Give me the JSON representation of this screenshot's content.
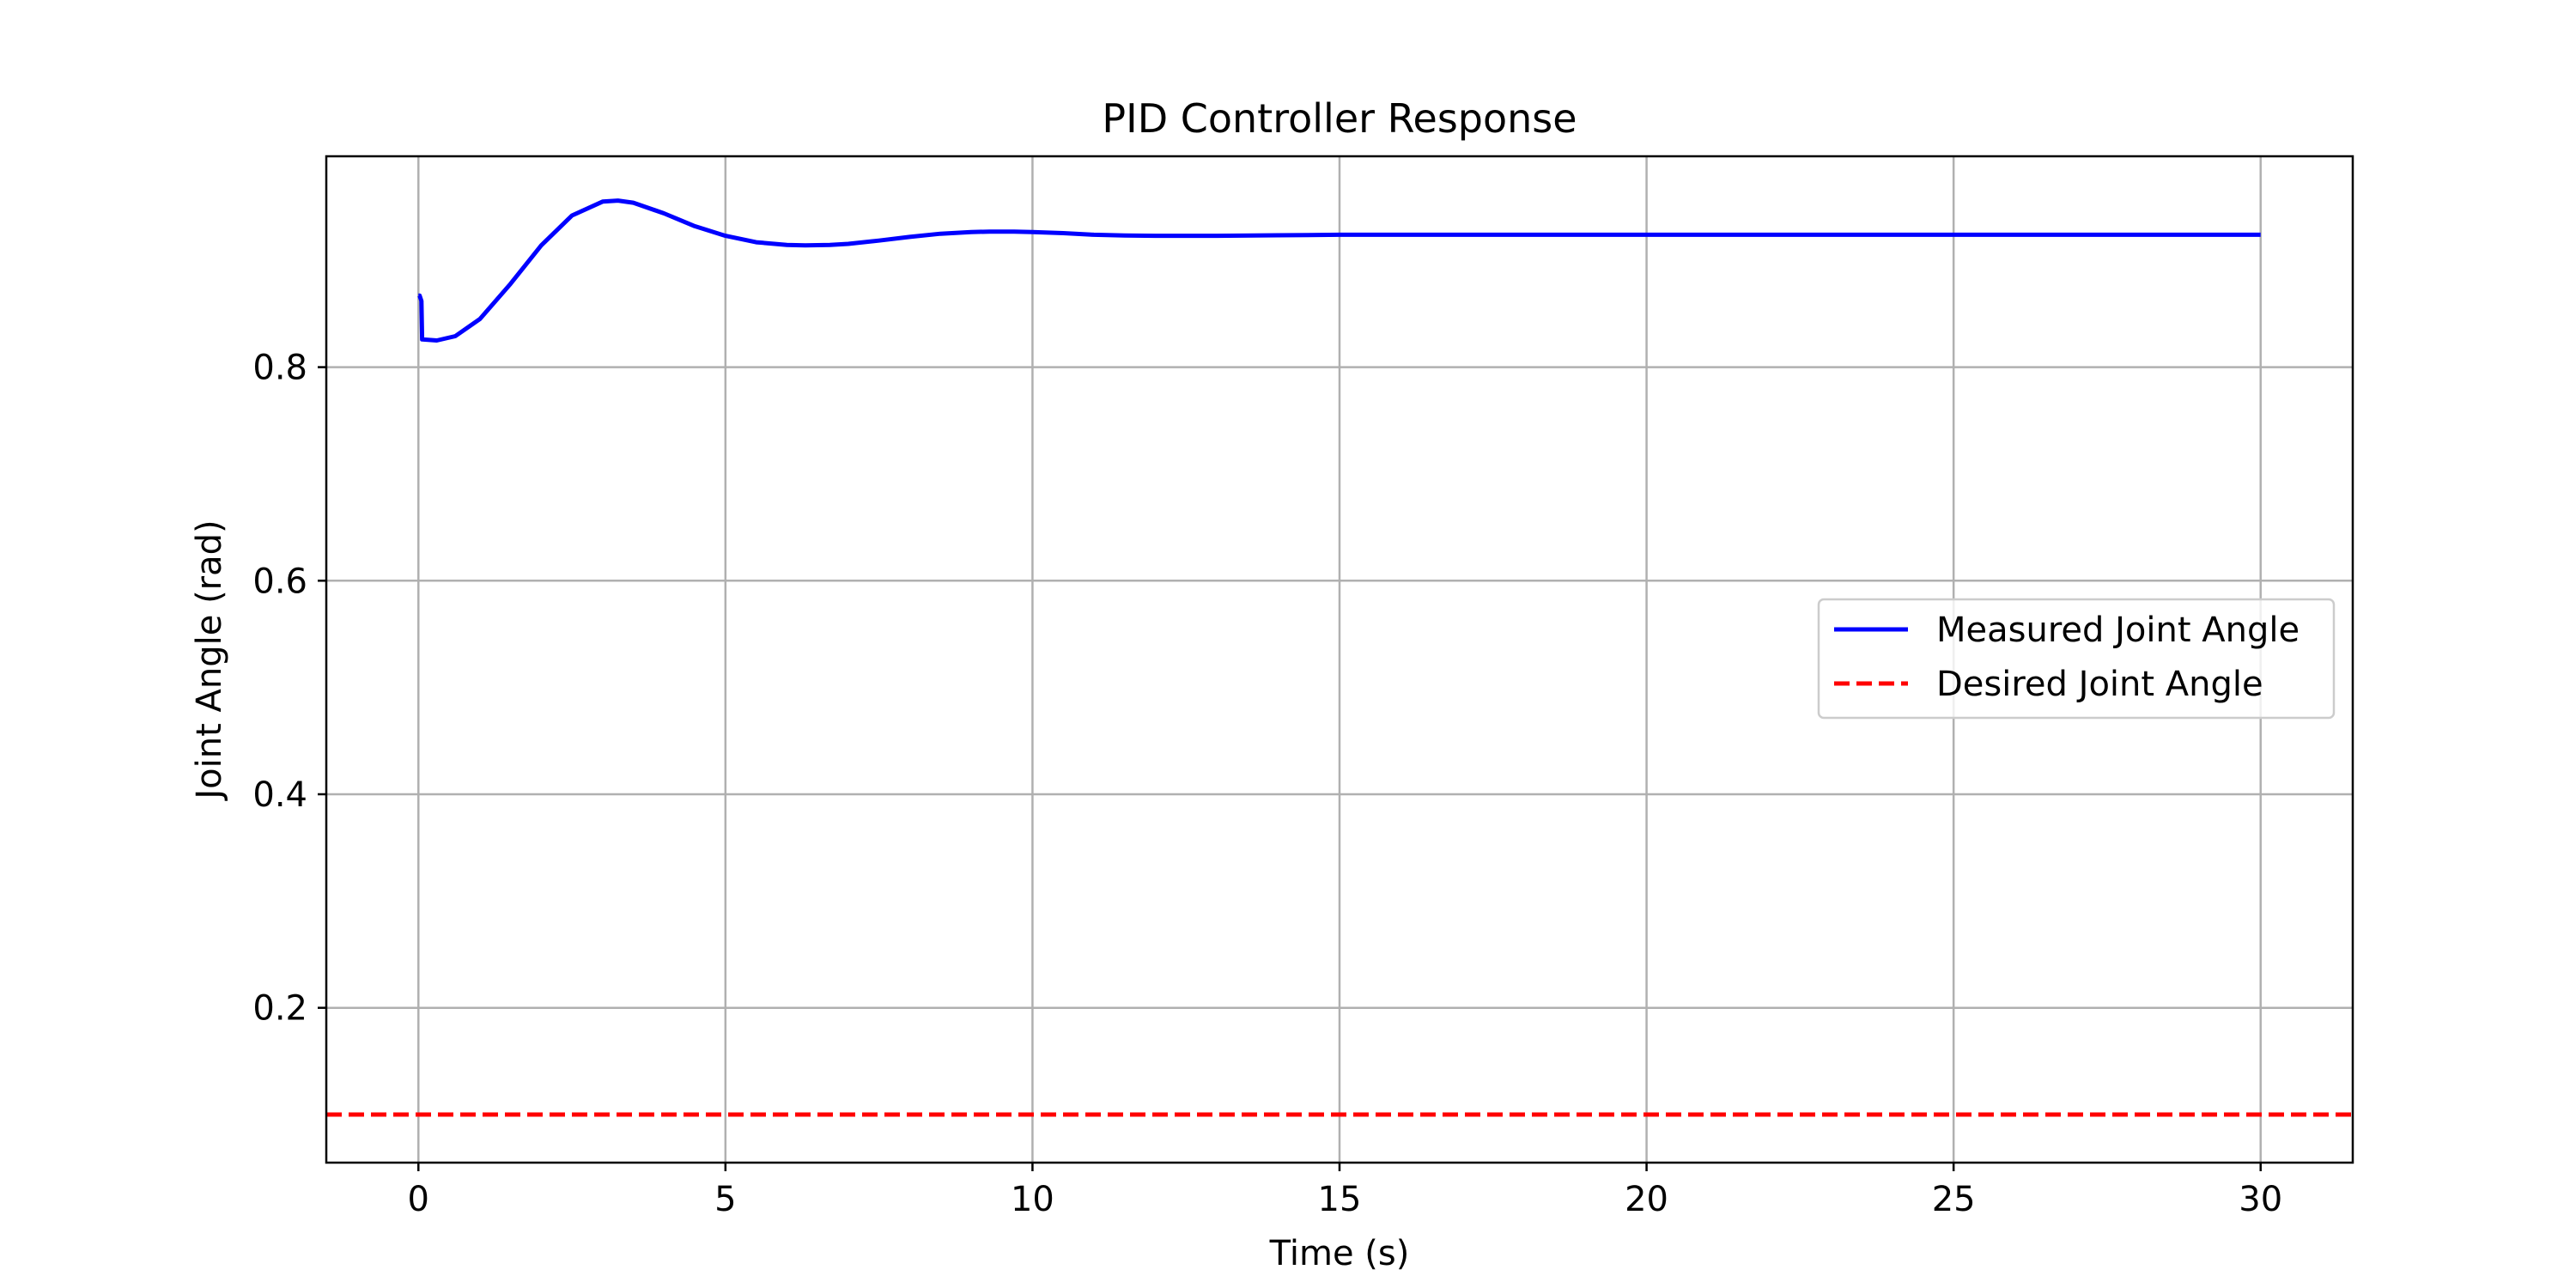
{
  "chart_data": {
    "type": "line",
    "title": "PID Controller Response",
    "xlabel": "Time (s)",
    "ylabel": "Joint Angle (rad)",
    "xlim": [
      -1.5,
      31.5
    ],
    "ylim": [
      0.055,
      0.9975
    ],
    "xticks": [
      0,
      5,
      10,
      15,
      20,
      25,
      30
    ],
    "yticks": [
      0.2,
      0.4,
      0.6,
      0.8
    ],
    "grid": true,
    "legend_position": "center-right",
    "series": [
      {
        "name": "Measured Joint Angle",
        "color": "#0000ff",
        "style": "solid",
        "x": [
          0,
          0.02,
          0.05,
          0.06,
          0.3,
          0.6,
          1.0,
          1.5,
          2.0,
          2.5,
          3.0,
          3.25,
          3.5,
          4.0,
          4.5,
          5.0,
          5.5,
          6.0,
          6.3,
          6.7,
          7.0,
          7.5,
          8.0,
          8.5,
          9.0,
          9.3,
          9.7,
          10.0,
          10.5,
          11.0,
          11.5,
          12.0,
          13.0,
          14.0,
          15.0,
          16.0,
          17.0,
          18.0,
          20.0,
          22.0,
          25.0,
          30.0
        ],
        "y": [
          0.867,
          0.867,
          0.862,
          0.826,
          0.825,
          0.829,
          0.845,
          0.878,
          0.914,
          0.942,
          0.955,
          0.956,
          0.954,
          0.944,
          0.932,
          0.923,
          0.917,
          0.9145,
          0.914,
          0.9145,
          0.9155,
          0.9185,
          0.922,
          0.925,
          0.9265,
          0.927,
          0.927,
          0.9265,
          0.9255,
          0.924,
          0.9233,
          0.923,
          0.923,
          0.9235,
          0.924,
          0.924,
          0.924,
          0.924,
          0.924,
          0.924,
          0.924,
          0.924
        ]
      },
      {
        "name": "Desired Joint Angle",
        "color": "#ff0000",
        "style": "dashed",
        "x": [
          -1.5,
          31.5
        ],
        "y": [
          0.1,
          0.1
        ]
      }
    ]
  }
}
